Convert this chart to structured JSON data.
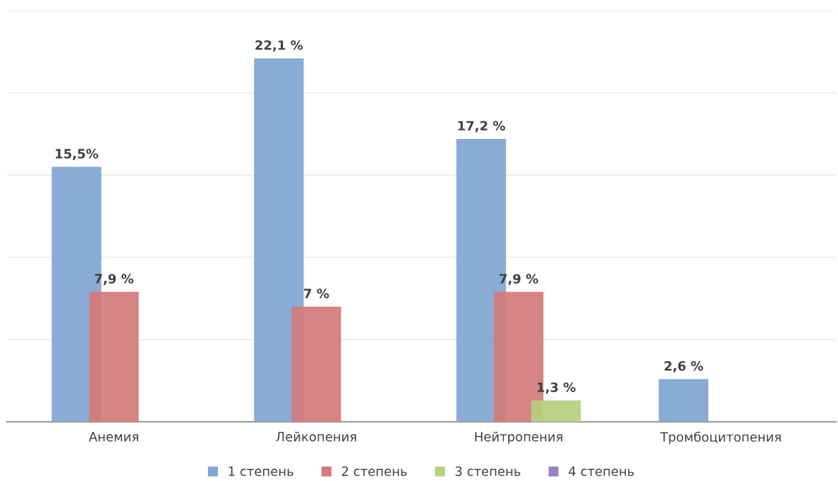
{
  "chart_data": {
    "type": "bar",
    "categories": [
      "Анемия",
      "Лейкопения",
      "Нейтропения",
      "Тромбоцитопения"
    ],
    "series": [
      {
        "name": "1 степень",
        "color": "#7fa5d2",
        "values": [
          15.5,
          22.1,
          17.2,
          2.6
        ],
        "value_labels": [
          "15,5%",
          "22,1 %",
          "17,2 %",
          "2,6 %"
        ]
      },
      {
        "name": "2 степень",
        "color": "#d47a7a",
        "values": [
          7.9,
          7,
          7.9,
          null
        ],
        "value_labels": [
          "7,9 %",
          "7 %",
          "7,9 %",
          null
        ]
      },
      {
        "name": "3 степень",
        "color": "#b6d07e",
        "values": [
          null,
          null,
          1.3,
          null
        ],
        "value_labels": [
          null,
          null,
          "1,3 %",
          null
        ]
      },
      {
        "name": "4 степень",
        "color": "#9a80c0",
        "values": [
          null,
          null,
          null,
          null
        ]
      }
    ],
    "ylim": [
      0,
      25
    ],
    "yticks": [
      {
        "value": 0,
        "label": null
      },
      {
        "value": 5,
        "label": null
      },
      {
        "value": 10,
        "label": null
      },
      {
        "value": 15,
        "label": null
      },
      {
        "value": 20,
        "label": null
      },
      {
        "value": 25,
        "label": null
      }
    ],
    "tick_labels": "x",
    "grid": "y",
    "legend": "bottom"
  }
}
